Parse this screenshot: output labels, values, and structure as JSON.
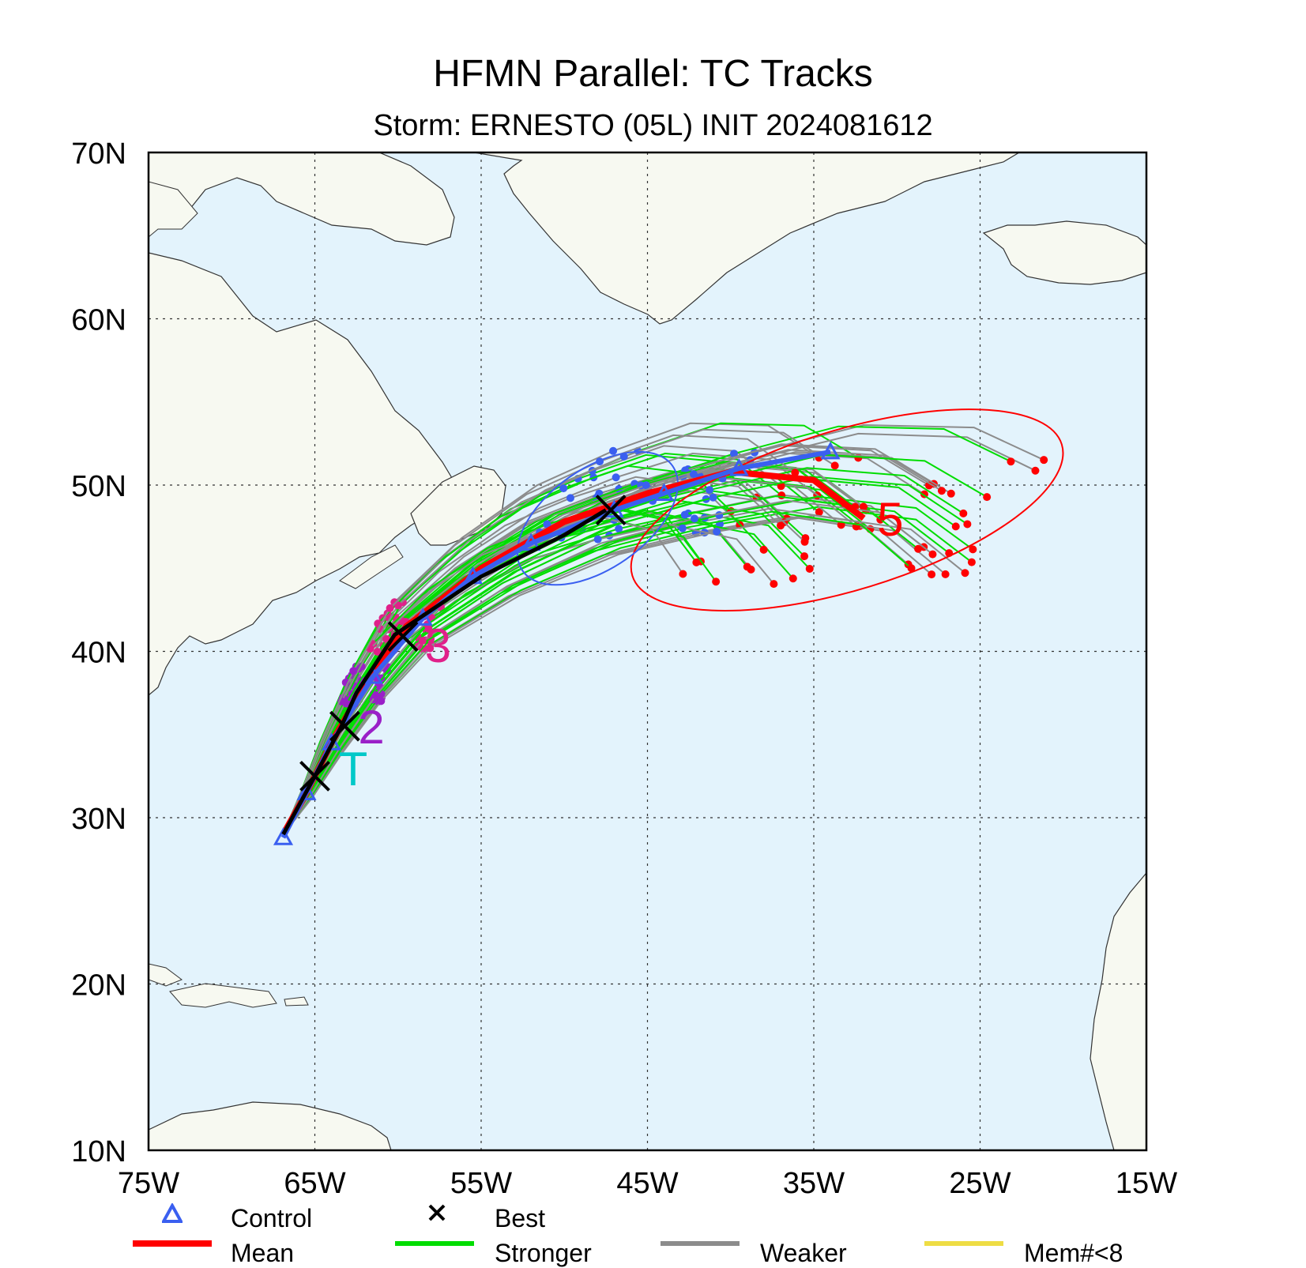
{
  "title": "HFMN Parallel: TC Tracks",
  "subtitle": "Storm: ERNESTO (05L) INIT 2024081612",
  "axes": {
    "lon_labels": [
      "75W",
      "65W",
      "55W",
      "45W",
      "35W",
      "25W",
      "15W"
    ],
    "lat_labels": [
      "70N",
      "60N",
      "50N",
      "40N",
      "30N",
      "20N",
      "10N"
    ],
    "lon_range": [
      -75,
      -15
    ],
    "lat_range": [
      10,
      70
    ],
    "grid": "dotted"
  },
  "colors": {
    "ocean": "#e3f3fc",
    "land": "#f7f9f1",
    "mean": "#ff0000",
    "control": "#3a5ff0",
    "stronger": "#00dd00",
    "weaker": "#8c8c8c",
    "best": "#000000",
    "member_lt8": "#eedd44"
  },
  "legend": [
    {
      "label": "Control",
      "symbol": "triangle",
      "color": "#3a5ff0"
    },
    {
      "label": "Best",
      "symbol": "x",
      "color": "#000000"
    },
    {
      "label": "Mean",
      "symbol": "line",
      "color": "#ff0000"
    },
    {
      "label": "Stronger",
      "symbol": "line",
      "color": "#00dd00"
    },
    {
      "label": "Weaker",
      "symbol": "line",
      "color": "#8c8c8c"
    },
    {
      "label": "Mem#<8",
      "symbol": "line",
      "color": "#eedd44"
    }
  ],
  "day_markers": [
    {
      "label": "T",
      "color": "#00c8c8",
      "lon": -62.7,
      "lat": 33.0
    },
    {
      "label": "2",
      "color": "#9a20c8",
      "lon": -61.6,
      "lat": 35.5
    },
    {
      "label": "3",
      "color": "#e0208a",
      "lon": -57.6,
      "lat": 40.4
    },
    {
      "label": "5",
      "color": "#ff0000",
      "lon": -30.4,
      "lat": 48.0
    }
  ],
  "chart_data": {
    "type": "map_tracks",
    "best_track": [
      [
        -66.9,
        29.0
      ],
      [
        -65.0,
        32.5
      ],
      [
        -63.4,
        35.5
      ],
      [
        -62.5,
        37.5
      ],
      [
        -60.2,
        41.0
      ],
      [
        -55,
        44.5
      ],
      [
        -50,
        47.0
      ],
      [
        -47.5,
        48.5
      ]
    ],
    "mean_track": [
      [
        -66.9,
        29.0
      ],
      [
        -65.5,
        31.5
      ],
      [
        -64.0,
        34.5
      ],
      [
        -62.0,
        38.0
      ],
      [
        -59.5,
        41.5
      ],
      [
        -55,
        45.0
      ],
      [
        -50,
        47.8
      ],
      [
        -45,
        49.5
      ],
      [
        -40,
        50.8
      ],
      [
        -35,
        50.3
      ],
      [
        -32,
        48.0
      ]
    ],
    "control_track": [
      [
        -66.9,
        28.8
      ],
      [
        -65.5,
        31.5
      ],
      [
        -64.0,
        34.5
      ],
      [
        -61.5,
        38.5
      ],
      [
        -58.5,
        42.0
      ],
      [
        -55.5,
        44.5
      ],
      [
        -52,
        46.5
      ],
      [
        -47,
        48.5
      ],
      [
        -44,
        49.5
      ],
      [
        -39.5,
        51.0
      ],
      [
        -34,
        52.0
      ]
    ],
    "best_positions_x": [
      [
        -65.0,
        32.5
      ],
      [
        -63.2,
        35.5
      ],
      [
        -59.7,
        40.9
      ],
      [
        -47.2,
        48.5
      ]
    ],
    "uncertainty_ellipses": [
      {
        "day": "5",
        "color": "#ff0000",
        "center": [
          -33.0,
          48.5
        ],
        "rx_deg": 13.5,
        "ry_deg": 4.8,
        "rot_deg": -17
      },
      {
        "day": "4",
        "color": "#3a5ff0",
        "center": [
          -48.0,
          48.0
        ],
        "rx_deg": 5.5,
        "ry_deg": 3.0,
        "rot_deg": -35
      }
    ]
  }
}
